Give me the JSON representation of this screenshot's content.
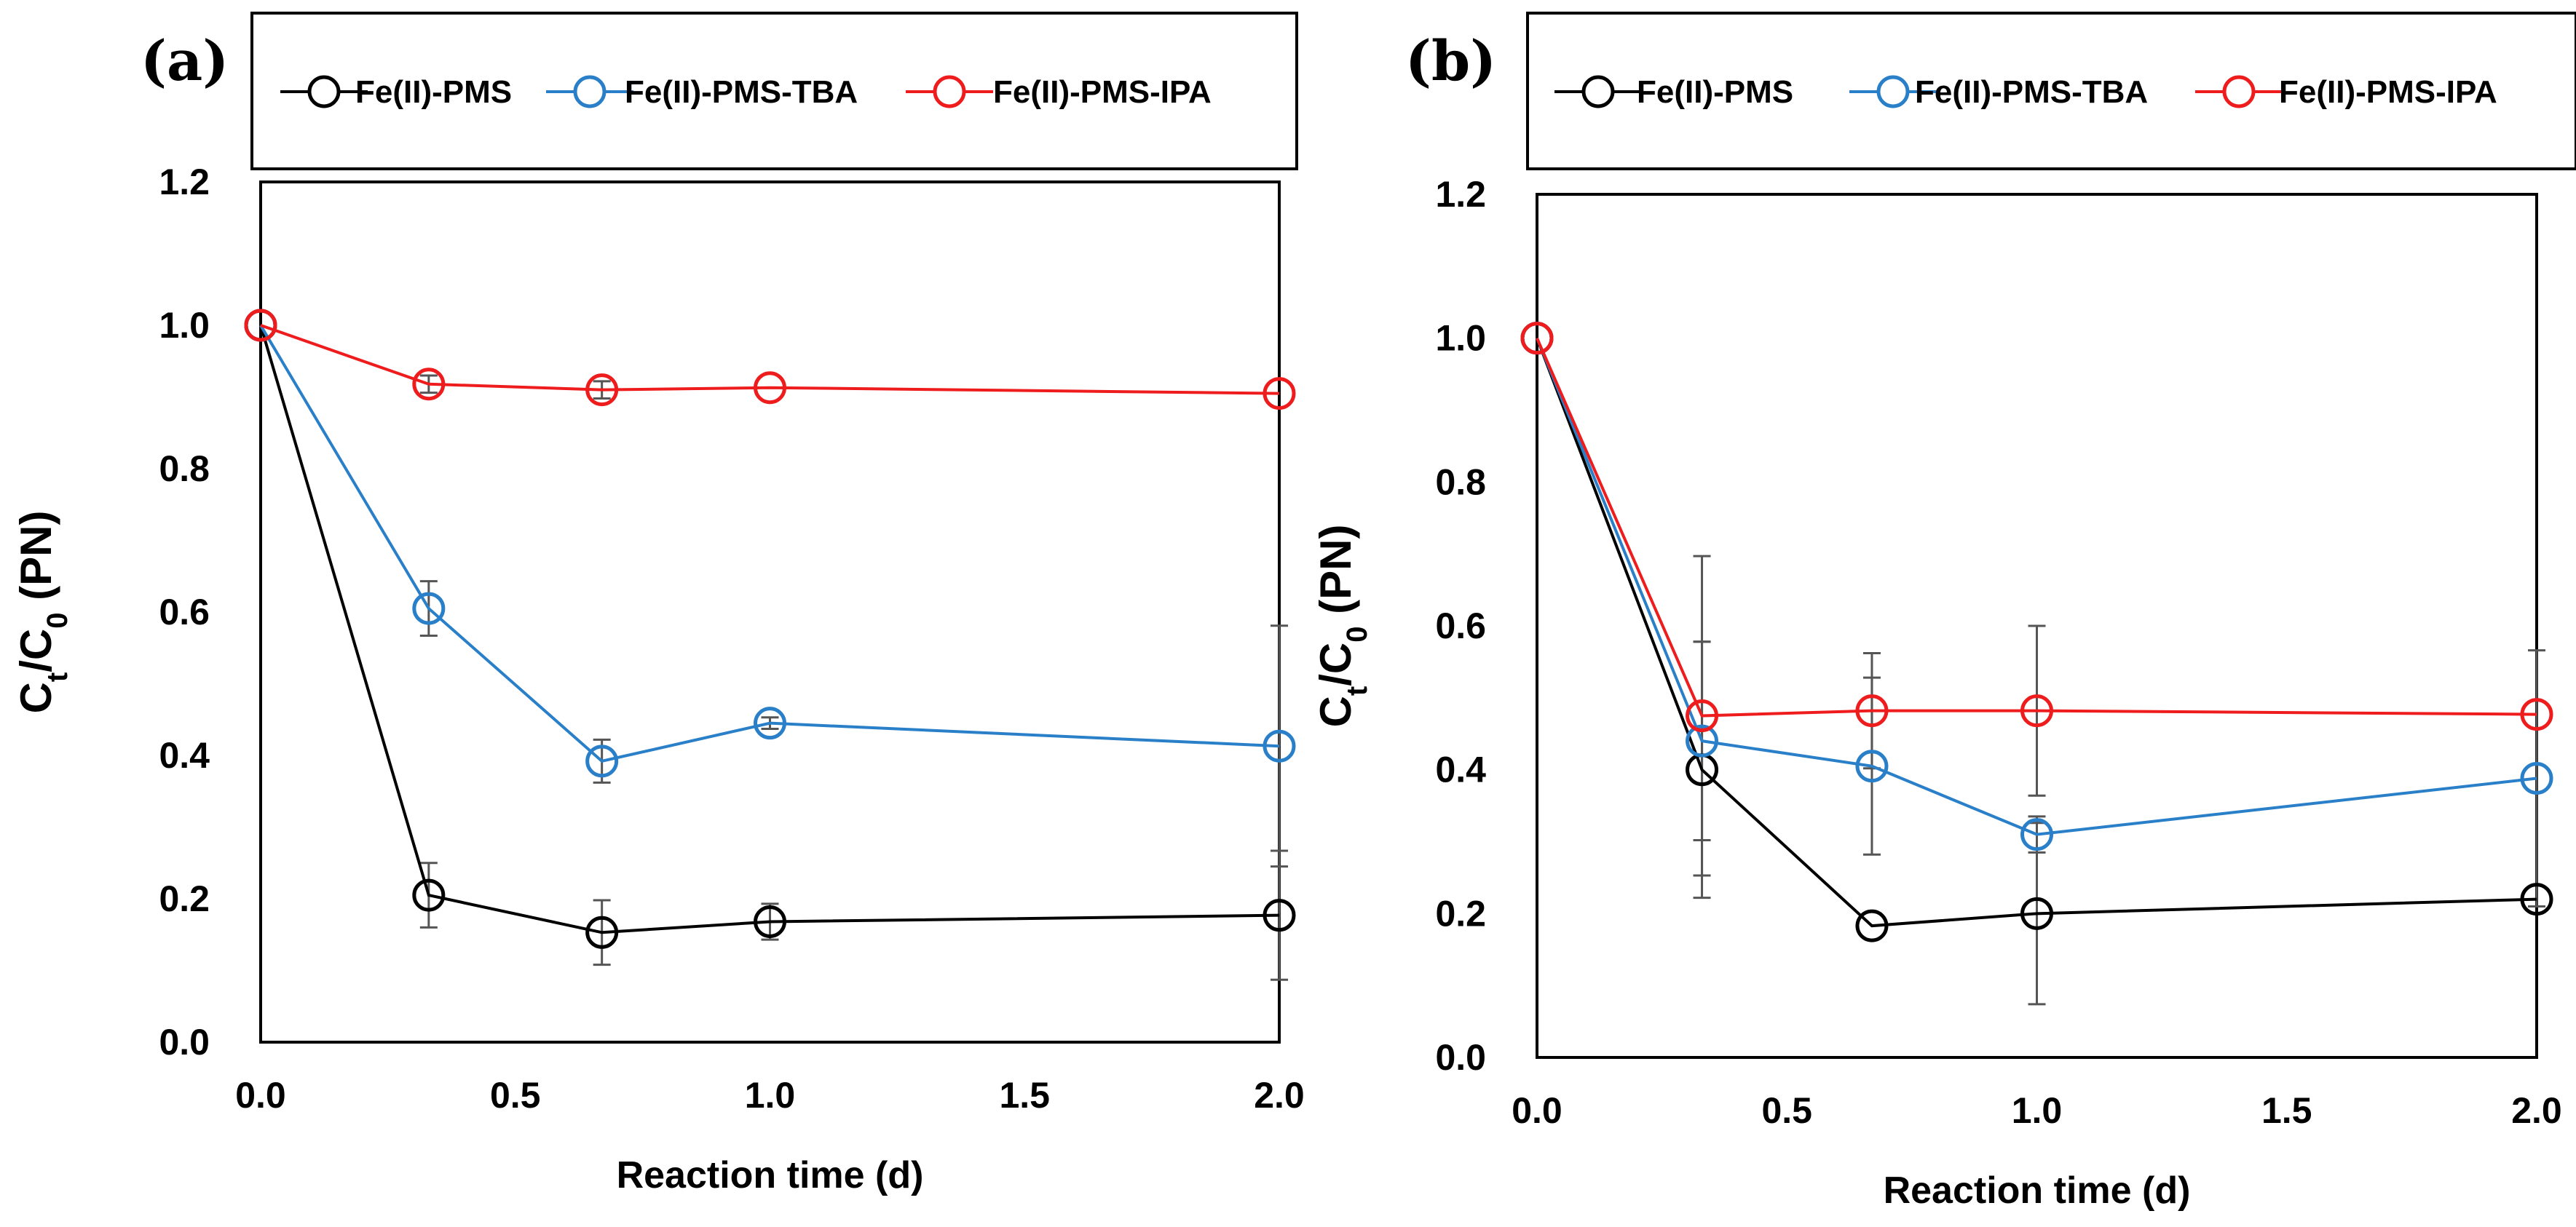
{
  "chart_data": [
    {
      "type": "line",
      "panel_label": "(a)",
      "legend": [
        "Fe(II)-PMS",
        "Fe(II)-PMS-TBA",
        "Fe(II)-PMS-IPA"
      ],
      "xlabel": "Reaction time (d)",
      "ylabel": {
        "base": "C",
        "sub1": "t",
        "slash": "/C",
        "sub2": "0",
        "rest": " (PN)"
      },
      "xlim": [
        0,
        2
      ],
      "ylim": [
        0,
        1.2
      ],
      "xticks": [
        "0.0",
        "0.5",
        "1.0",
        "1.5",
        "2.0"
      ],
      "yticks": [
        "0.0",
        "0.2",
        "0.4",
        "0.6",
        "0.8",
        "1.0",
        "1.2"
      ],
      "x": [
        0,
        0.33,
        0.67,
        1.0,
        2.0
      ],
      "series": [
        {
          "name": "Fe(II)-PMS",
          "color": "#000000",
          "values": [
            1.0,
            0.205,
            0.153,
            0.168,
            0.177
          ],
          "errors": [
            0,
            0.045,
            0.045,
            0.025,
            0.09
          ]
        },
        {
          "name": "Fe(II)-PMS-TBA",
          "color": "#2a7fc9",
          "values": [
            1.0,
            0.605,
            0.392,
            0.445,
            0.413
          ],
          "errors": [
            0,
            0.038,
            0.03,
            0.008,
            0.168
          ]
        },
        {
          "name": "Fe(II)-PMS-IPA",
          "color": "#ee1c1c",
          "values": [
            1.0,
            0.918,
            0.91,
            0.913,
            0.905
          ],
          "errors": [
            0,
            0.012,
            0.012,
            0,
            0
          ]
        }
      ]
    },
    {
      "type": "line",
      "panel_label": "(b)",
      "legend": [
        "Fe(II)-PMS",
        "Fe(II)-PMS-TBA",
        "Fe(II)-PMS-IPA"
      ],
      "xlabel": "Reaction time (d)",
      "ylabel": {
        "base": "C",
        "sub1": "t",
        "slash": "/C",
        "sub2": "0",
        "rest": " (PN)"
      },
      "xlim": [
        0,
        2
      ],
      "ylim": [
        0,
        1.2
      ],
      "xticks": [
        "0.0",
        "0.5",
        "1.0",
        "1.5",
        "2.0"
      ],
      "yticks": [
        "0.0",
        "0.2",
        "0.4",
        "0.6",
        "0.8",
        "1.0",
        "1.2"
      ],
      "x": [
        0,
        0.33,
        0.67,
        1.0,
        2.0
      ],
      "series": [
        {
          "name": "Fe(II)-PMS",
          "color": "#000000",
          "values": [
            1.0,
            0.4,
            0.183,
            0.2,
            0.22
          ],
          "errors": [
            0,
            0.178,
            0,
            0.126,
            0
          ]
        },
        {
          "name": "Fe(II)-PMS-TBA",
          "color": "#2a7fc9",
          "values": [
            1.0,
            0.44,
            0.405,
            0.31,
            0.388
          ],
          "errors": [
            0,
            0.138,
            0.123,
            0.025,
            0.178
          ]
        },
        {
          "name": "Fe(II)-PMS-IPA",
          "color": "#ee1c1c",
          "values": [
            1.0,
            0.475,
            0.482,
            0.482,
            0.477
          ],
          "errors": [
            0,
            0.222,
            0.08,
            0.118,
            0
          ]
        }
      ]
    }
  ]
}
